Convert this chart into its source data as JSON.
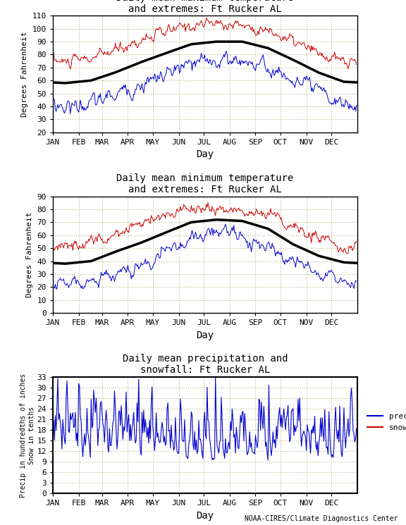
{
  "title1": "Daily mean maximum temperature\nand extremes: Ft Rucker AL",
  "title2": "Daily mean minimum temperature\nand extremes: Ft Rucker AL",
  "title3": "Daily mean precipitation and\nsnowfall: Ft Rucker AL",
  "ylabel1": "Degrees Fahrenheit",
  "ylabel2": "Degrees Fahrenheit",
  "ylabel3": "Precip in hundredths of inches\nSnow in tenths",
  "xlabel": "Day",
  "footnote": "NOAA-CIRES/Climate Diagnostics Center",
  "months": [
    "JAN",
    "FEB",
    "MAR",
    "APR",
    "MAY",
    "JUN",
    "JUL",
    "AUG",
    "SEP",
    "OCT",
    "NOV",
    "DEC"
  ],
  "max_mean": [
    58,
    60,
    66,
    74,
    81,
    88,
    90,
    90,
    85,
    76,
    66,
    59
  ],
  "max_upper": [
    74,
    77,
    83,
    91,
    97,
    103,
    104,
    103,
    98,
    90,
    80,
    74
  ],
  "max_lower": [
    40,
    42,
    49,
    57,
    64,
    72,
    76,
    76,
    70,
    60,
    50,
    41
  ],
  "min_mean": [
    38,
    40,
    47,
    54,
    62,
    70,
    72,
    71,
    65,
    53,
    44,
    39
  ],
  "min_upper": [
    52,
    55,
    62,
    68,
    75,
    80,
    80,
    80,
    76,
    66,
    57,
    52
  ],
  "min_lower": [
    22,
    24,
    30,
    38,
    47,
    57,
    62,
    60,
    53,
    39,
    30,
    24
  ],
  "ylim1": [
    20,
    110
  ],
  "yticks1": [
    20,
    30,
    40,
    50,
    60,
    70,
    80,
    90,
    100,
    110
  ],
  "ylim2": [
    0,
    90
  ],
  "yticks2": [
    0,
    10,
    20,
    30,
    40,
    50,
    60,
    70,
    80,
    90
  ],
  "ylim3": [
    0,
    33
  ],
  "yticks3": [
    0,
    3,
    6,
    9,
    12,
    15,
    18,
    21,
    24,
    27,
    30,
    33
  ],
  "bg_color": "#ffffff",
  "plot_bg": "#ffffff",
  "grid_color": "#b8b890",
  "mean_color": "#000000",
  "extreme_high_color": "#cc0000",
  "extreme_low_color": "#0000cc",
  "precip_color": "#0000cc",
  "snow_color": "#cc0000",
  "mean_lw": 2.5,
  "extreme_lw": 0.7,
  "precip_lw": 0.8
}
